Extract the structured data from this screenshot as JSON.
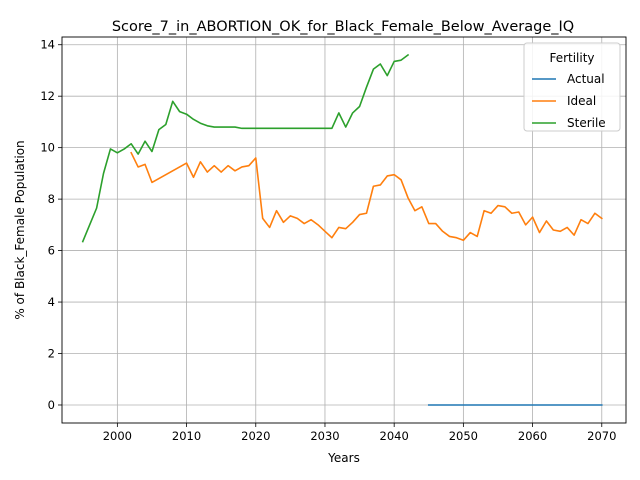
{
  "chart_data": {
    "type": "line",
    "title": "Score_7_in_ABORTION_OK_for_Black_Female_Below_Average_IQ",
    "xlabel": "Years",
    "ylabel": "% of Black_Female Population",
    "xlim": [
      1992.0,
      2073.5
    ],
    "ylim": [
      -0.7,
      14.3
    ],
    "xticks": [
      2000,
      2010,
      2020,
      2030,
      2040,
      2050,
      2060,
      2070
    ],
    "yticks": [
      0,
      2,
      4,
      6,
      8,
      10,
      12,
      14
    ],
    "grid": true,
    "legend": {
      "title": "Fertility",
      "position": "top-right"
    },
    "series": [
      {
        "name": "Actual",
        "color": "#1f77b4",
        "x": [
          2045,
          2050,
          2055,
          2060,
          2065,
          2070
        ],
        "y": [
          0.0,
          0.0,
          0.0,
          0.0,
          0.0,
          0.0
        ]
      },
      {
        "name": "Ideal",
        "color": "#ff7f0e",
        "x": [
          2002,
          2003,
          2004,
          2005,
          2006,
          2007,
          2008,
          2009,
          2010,
          2011,
          2012,
          2013,
          2014,
          2015,
          2016,
          2017,
          2018,
          2019,
          2020,
          2021,
          2022,
          2023,
          2024,
          2025,
          2026,
          2027,
          2028,
          2029,
          2030,
          2031,
          2032,
          2033,
          2034,
          2035,
          2036,
          2037,
          2038,
          2039,
          2040,
          2041,
          2042,
          2043,
          2044,
          2045,
          2046,
          2047,
          2048,
          2049,
          2050,
          2051,
          2052,
          2053,
          2054,
          2055,
          2056,
          2057,
          2058,
          2059,
          2060,
          2061,
          2062,
          2063,
          2064,
          2065,
          2066,
          2067,
          2068,
          2069,
          2070
        ],
        "y": [
          9.8,
          9.25,
          9.35,
          8.65,
          8.8,
          8.95,
          9.1,
          9.25,
          9.4,
          8.85,
          9.45,
          9.05,
          9.3,
          9.05,
          9.3,
          9.1,
          9.25,
          9.3,
          9.6,
          7.25,
          6.9,
          7.55,
          7.1,
          7.35,
          7.25,
          7.05,
          7.2,
          7.0,
          6.75,
          6.5,
          6.9,
          6.85,
          7.1,
          7.4,
          7.45,
          8.5,
          8.55,
          8.9,
          8.95,
          8.75,
          8.05,
          7.55,
          7.7,
          7.05,
          7.05,
          6.75,
          6.55,
          6.5,
          6.4,
          6.7,
          6.55,
          7.55,
          7.45,
          7.75,
          7.7,
          7.45,
          7.5,
          7.0,
          7.3,
          6.7,
          7.15,
          6.8,
          6.75,
          6.9,
          6.6,
          7.2,
          7.05,
          7.45,
          7.25
        ]
      },
      {
        "name": "Sterile",
        "color": "#2ca02c",
        "x": [
          1995,
          1996,
          1997,
          1998,
          1999,
          2000,
          2001,
          2002,
          2003,
          2004,
          2005,
          2006,
          2007,
          2008,
          2009,
          2010,
          2011,
          2012,
          2013,
          2014,
          2015,
          2016,
          2017,
          2018,
          2019,
          2020,
          2021,
          2022,
          2023,
          2024,
          2025,
          2026,
          2027,
          2028,
          2029,
          2030,
          2031,
          2032,
          2033,
          2034,
          2035,
          2036,
          2037,
          2038,
          2039,
          2040,
          2041,
          2042
        ],
        "y": [
          6.35,
          7.0,
          7.65,
          9.0,
          9.95,
          9.8,
          9.95,
          10.15,
          9.75,
          10.25,
          9.85,
          10.7,
          10.9,
          11.8,
          11.4,
          11.3,
          11.1,
          10.95,
          10.85,
          10.8,
          10.8,
          10.8,
          10.8,
          10.75,
          10.75,
          10.75,
          10.75,
          10.75,
          10.75,
          10.75,
          10.75,
          10.75,
          10.75,
          10.75,
          10.75,
          10.75,
          10.75,
          11.35,
          10.8,
          11.35,
          11.6,
          12.35,
          13.05,
          13.25,
          12.8,
          13.35,
          13.4,
          13.6
        ]
      }
    ]
  }
}
